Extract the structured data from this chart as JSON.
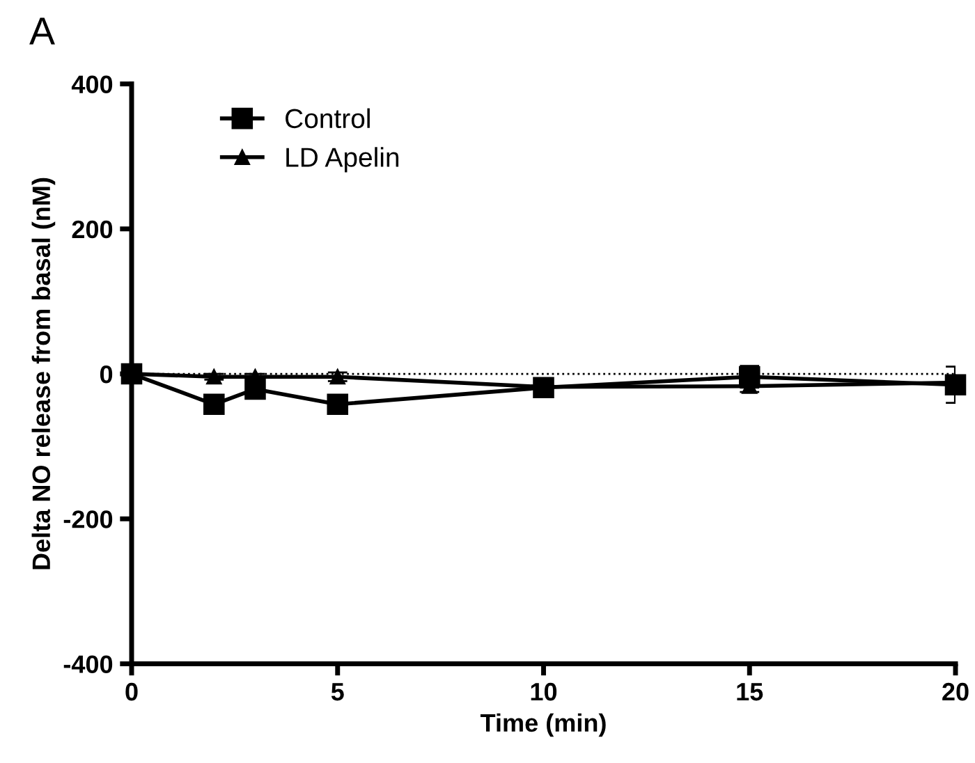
{
  "chart_data": {
    "type": "line",
    "title": "A",
    "xlabel": "Time (min)",
    "ylabel": "Delta NO release from basal (nM)",
    "x": [
      0,
      2,
      3,
      5,
      10,
      15,
      20
    ],
    "series": [
      {
        "name": "Control",
        "color": "#000000",
        "marker": "square",
        "values": [
          0,
          -42,
          -21,
          -42,
          -19,
          -4,
          -15
        ],
        "errors": [
          null,
          6,
          6,
          6,
          10,
          15,
          25
        ]
      },
      {
        "name": "LD Apelin",
        "color": "#000000",
        "marker": "triangle",
        "values": [
          0,
          -4,
          -4,
          -4,
          -18,
          -17,
          -12
        ],
        "errors": [
          null,
          4,
          4,
          6,
          6,
          8,
          8
        ]
      }
    ],
    "xlim": [
      0,
      20
    ],
    "xticks": [
      0,
      5,
      10,
      15,
      20
    ],
    "ylim": [
      -400,
      400
    ],
    "yticks": [
      -400,
      -200,
      0,
      200,
      400
    ],
    "ref_lines": [
      {
        "axis": "y",
        "value": 0,
        "line_style": "dotted",
        "color": "#000000"
      }
    ],
    "legend": "top left",
    "grid": false
  }
}
